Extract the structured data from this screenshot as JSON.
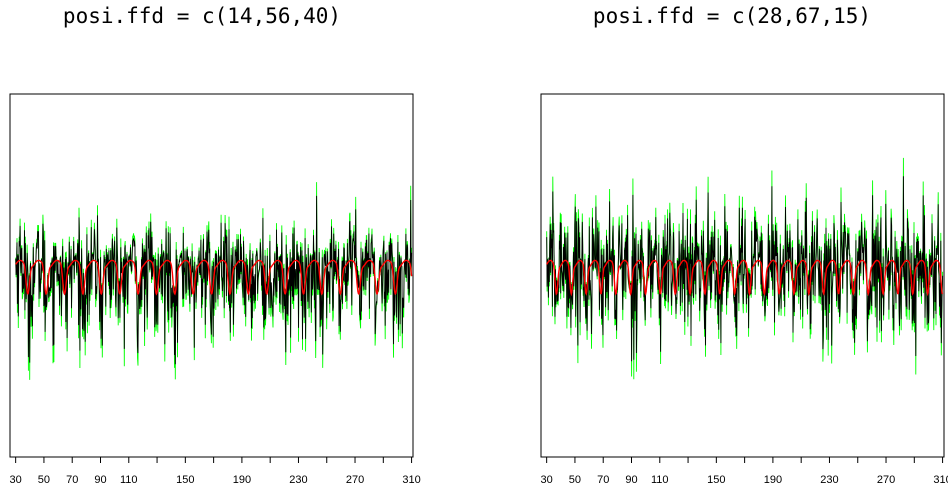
{
  "chart_data": [
    {
      "type": "line",
      "title": "posi.ffd = c(14,56,40)",
      "x_ticks": [
        30,
        50,
        70,
        90,
        110,
        150,
        190,
        230,
        270,
        310
      ],
      "xlim": [
        26,
        311
      ],
      "ylim": [
        -9,
        9
      ],
      "grid": false,
      "legend": "none",
      "x_range": [
        30,
        310
      ],
      "envelope": {
        "outer_upper_level": 3.6,
        "outer_lower_level": -3.6,
        "dip_regions_x": [
          42,
          57,
          70,
          82,
          95,
          108,
          121,
          134,
          146,
          159,
          172,
          185,
          198,
          211,
          224,
          237,
          250,
          263,
          276,
          289,
          302
        ],
        "upper_dip_level": 1.4,
        "lower_dip_level": -4.3
      },
      "series": [
        {
          "color": "#00ff00",
          "values_approx": {
            "typical_max": 3.4,
            "typical_min": -3.5,
            "extreme_max": 4.4,
            "extreme_min": -5.6
          }
        },
        {
          "color": "#000000",
          "values_approx": {
            "typical_max": 3.0,
            "typical_min": -3.0,
            "extreme_max": 4.2,
            "extreme_min": -5.3
          }
        },
        {
          "color": "#ff0000",
          "values_approx": {
            "mean_level": 0.4,
            "peak": 0.8,
            "trough": -0.7
          }
        }
      ],
      "colors": {
        "noise_outer": "#00ff00",
        "noise_inner": "#000000",
        "mean": "#ff0000"
      }
    },
    {
      "type": "line",
      "title": "posi.ffd = c(28,67,15)",
      "x_ticks": [
        30,
        50,
        70,
        90,
        110,
        150,
        190,
        230,
        270,
        310
      ],
      "xlim": [
        26,
        311
      ],
      "ylim": [
        -9,
        9
      ],
      "grid": false,
      "legend": "none",
      "x_range": [
        30,
        310
      ],
      "series": [
        {
          "color": "#00ff00",
          "values_approx": {
            "typical_max": 3.5,
            "typical_min": -3.5,
            "extreme_max": 6.0,
            "extreme_min": -5.2
          }
        },
        {
          "color": "#000000",
          "values_approx": {
            "typical_max": 2.8,
            "typical_min": -2.8,
            "extreme_max": 5.2,
            "extreme_min": -4.5
          }
        },
        {
          "color": "#ff0000",
          "values_approx": {
            "mean_level": 0.4,
            "peak": 0.9,
            "trough": -0.8
          }
        }
      ],
      "colors": {
        "noise_outer": "#00ff00",
        "noise_inner": "#000000",
        "mean": "#ff0000"
      }
    }
  ]
}
